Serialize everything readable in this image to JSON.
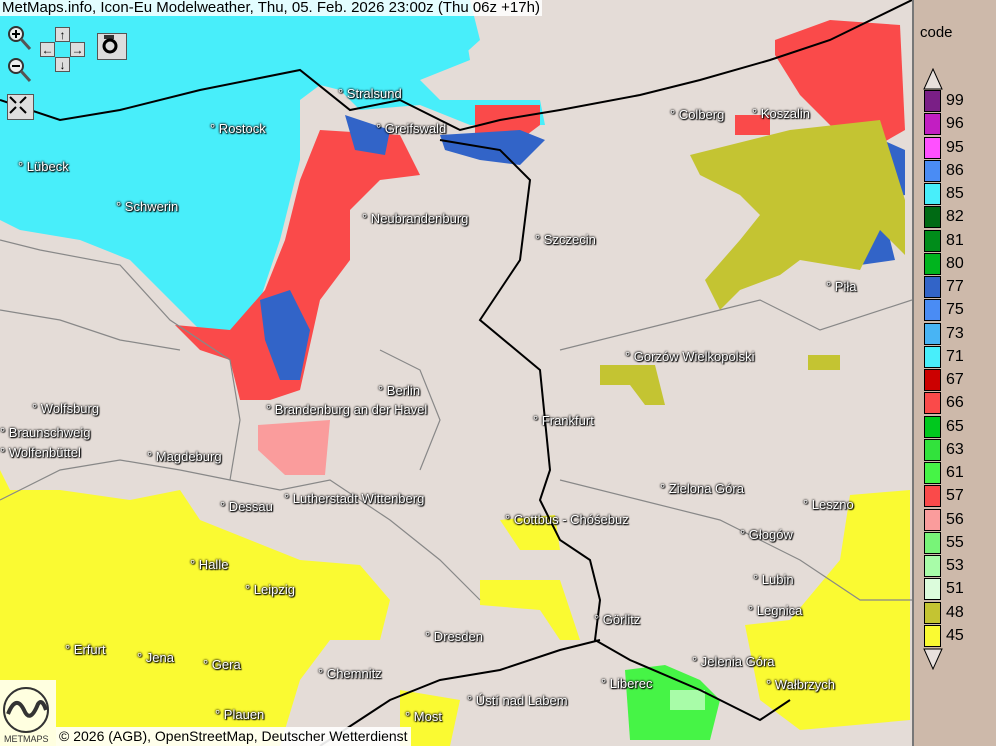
{
  "title": "MetMaps.info, Icon-Eu Modelweather, Thu, 05. Feb. 2026 23:00z (Thu 06z +17h)",
  "controls": {
    "zoom_in": "zoom-in",
    "zoom_out": "zoom-out",
    "pan_up": "↑",
    "pan_down": "↓",
    "pan_left": "←",
    "pan_right": "→",
    "snapshot": "camera",
    "fullscreen": "fullscreen"
  },
  "attribution": "© 2026 (AGB), OpenStreetMap, Deutscher Wetterdienst",
  "logo_text": "METMAPS",
  "cities": [
    "Stralsund",
    "Rostock",
    "Greifswald",
    "Lübeck",
    "Schwerin",
    "Neubrandenburg",
    "Szczecin",
    "Colberg",
    "Koszalin",
    "Piła",
    "Gorzów Wielkopolski",
    "Berlin",
    "Brandenburg an der Havel",
    "Wolfsburg",
    "Braunschweig",
    "Wolfenbüttel",
    "Magdeburg",
    "Frankfurt",
    "Dessau",
    "Lutherstadt Wittenberg",
    "Cottbus - Chóśebuz",
    "Zielona Góra",
    "Leszno",
    "Głogów",
    "Halle",
    "Leipzig",
    "Lubin",
    "Legnica",
    "Görlitz",
    "Erfurt",
    "Jena",
    "Gera",
    "Dresden",
    "Chemnitz",
    "Jelenia Góra",
    "Liberec",
    "Wałbrzych",
    "Ústí nad Labem",
    "Plauen",
    "Most"
  ],
  "legend": {
    "title": "code",
    "items": [
      {
        "code": "99",
        "color": "#7a1f86"
      },
      {
        "code": "96",
        "color": "#c21ec2"
      },
      {
        "code": "95",
        "color": "#ff50ff"
      },
      {
        "code": "86",
        "color": "#4a8cf4"
      },
      {
        "code": "85",
        "color": "#48eefa"
      },
      {
        "code": "82",
        "color": "#006a14"
      },
      {
        "code": "81",
        "color": "#008c1a"
      },
      {
        "code": "80",
        "color": "#00b41e"
      },
      {
        "code": "77",
        "color": "#3264c8"
      },
      {
        "code": "75",
        "color": "#4a8cf4"
      },
      {
        "code": "73",
        "color": "#48b4f4"
      },
      {
        "code": "71",
        "color": "#48eefa"
      },
      {
        "code": "67",
        "color": "#cc0000"
      },
      {
        "code": "66",
        "color": "#fa4a4a"
      },
      {
        "code": "65",
        "color": "#00c81e"
      },
      {
        "code": "63",
        "color": "#32e23c"
      },
      {
        "code": "61",
        "color": "#46f446"
      },
      {
        "code": "57",
        "color": "#fa4a4a"
      },
      {
        "code": "56",
        "color": "#fa9c9c"
      },
      {
        "code": "55",
        "color": "#78f478"
      },
      {
        "code": "53",
        "color": "#a8fca8"
      },
      {
        "code": "51",
        "color": "#dcfcdc"
      },
      {
        "code": "48",
        "color": "#c4c432"
      },
      {
        "code": "45",
        "color": "#fafa32"
      }
    ]
  }
}
